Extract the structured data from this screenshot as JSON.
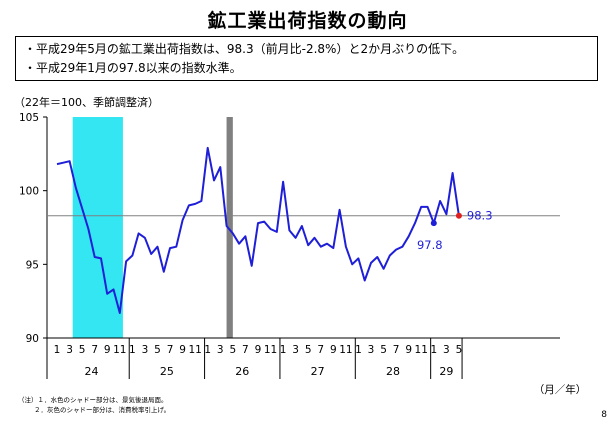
{
  "page": {
    "title": "鉱工業出荷指数の動向",
    "bullets": [
      "・平成29年5月の鉱工業出荷指数は、98.3（前月比-2.8%）と2か月ぶりの低下。",
      "・平成29年1月の97.8以来の指数水準。"
    ],
    "unit_label": "（22年＝100、季節調整済）",
    "xaxis_unit": "（月／年）",
    "footnotes": [
      "（注）１．水色のシャドー部分は、景気後退局面。",
      "２．灰色のシャドー部分は、消費税率引上げ。"
    ],
    "page_number": "8"
  },
  "chart_data": {
    "type": "line",
    "ylim": [
      90,
      105
    ],
    "yticks": [
      90,
      95,
      100,
      105
    ],
    "reference_line": 98.3,
    "colors": {
      "series": "#1f1fd8",
      "recession_shade": "#33e6f2",
      "tax_shade": "#808080",
      "latest_marker": "#e02020",
      "reference": "#808080"
    },
    "month_labels": [
      "1",
      "3",
      "5",
      "7",
      "9",
      "11"
    ],
    "years": [
      {
        "label": "24",
        "start": 0,
        "months": 12
      },
      {
        "label": "25",
        "start": 12,
        "months": 12
      },
      {
        "label": "26",
        "start": 24,
        "months": 12
      },
      {
        "label": "27",
        "start": 36,
        "months": 12
      },
      {
        "label": "28",
        "start": 48,
        "months": 12
      },
      {
        "label": "29",
        "start": 60,
        "months": 5
      }
    ],
    "recession_shade": {
      "from": 2.5,
      "to": 10.5
    },
    "tax_shade": {
      "from": 27,
      "to": 28
    },
    "series": [
      {
        "values": [
          101.8,
          101.9,
          102.0,
          100.2,
          98.8,
          97.4,
          95.5,
          95.4,
          93.0,
          93.3,
          91.7,
          95.2,
          95.6,
          97.1,
          96.8,
          95.7,
          96.2,
          94.5,
          96.1,
          96.2,
          98.0,
          99.0,
          99.1,
          99.3,
          102.9,
          100.7,
          101.6,
          97.6,
          97.1,
          96.4,
          96.9,
          94.9,
          97.8,
          97.9,
          97.4,
          97.2,
          100.6,
          97.3,
          96.8,
          97.6,
          96.3,
          96.8,
          96.2,
          96.4,
          96.1,
          98.7,
          96.2,
          95.0,
          95.4,
          93.9,
          95.1,
          95.5,
          94.7,
          95.6,
          96.0,
          96.2,
          96.9,
          97.8,
          98.9,
          98.9,
          97.8,
          99.3,
          98.4,
          101.2,
          98.3
        ]
      }
    ],
    "annotations": [
      {
        "index": 60,
        "value": 97.8,
        "text": "97.8"
      },
      {
        "index": 64,
        "value": 98.3,
        "text": "98.3"
      }
    ]
  }
}
